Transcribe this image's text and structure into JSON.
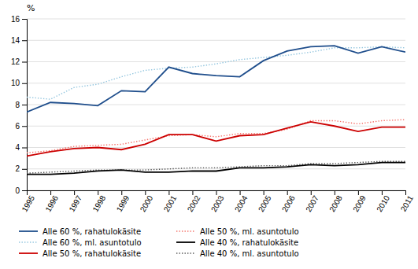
{
  "chart_data": {
    "type": "line",
    "ylabel": "%",
    "x": [
      1995,
      1996,
      1997,
      1998,
      1999,
      2000,
      2001,
      2002,
      2003,
      2004,
      2005,
      2006,
      2007,
      2008,
      2009,
      2010,
      2011
    ],
    "series": [
      {
        "name": "Alle 60 %, rahatulokäsite",
        "color": "#1f4e8c",
        "line_style": "solid",
        "values": [
          7.3,
          8.2,
          8.1,
          7.9,
          9.3,
          9.2,
          11.5,
          10.9,
          10.7,
          10.6,
          12.1,
          13.0,
          13.4,
          13.5,
          12.8,
          13.4,
          12.9
        ]
      },
      {
        "name": "Alle 60 %, ml. asuntotulo",
        "color": "#92c5de",
        "line_style": "dotted",
        "values": [
          8.7,
          8.5,
          9.6,
          9.9,
          10.6,
          11.2,
          11.4,
          11.5,
          11.8,
          12.2,
          12.4,
          12.6,
          12.9,
          13.3,
          13.3,
          13.4,
          13.3
        ]
      },
      {
        "name": "Alle 50 %, rahatulokäsite",
        "color": "#cc0000",
        "line_style": "solid",
        "values": [
          3.2,
          3.6,
          3.9,
          4.0,
          3.8,
          4.3,
          5.2,
          5.2,
          4.6,
          5.1,
          5.2,
          5.8,
          6.4,
          6.0,
          5.5,
          5.9,
          5.9
        ]
      },
      {
        "name": "Alle 50 %, ml. asuntotulo",
        "color": "#f4726a",
        "line_style": "dotted",
        "values": [
          3.5,
          3.7,
          4.1,
          4.2,
          4.3,
          4.7,
          5.1,
          5.2,
          5.0,
          5.3,
          5.3,
          5.7,
          6.5,
          6.5,
          6.2,
          6.5,
          6.6
        ]
      },
      {
        "name": "Alle 40 %, rahatulokäsite",
        "color": "#000000",
        "line_style": "solid",
        "values": [
          1.5,
          1.5,
          1.6,
          1.8,
          1.9,
          1.7,
          1.7,
          1.8,
          1.8,
          2.1,
          2.1,
          2.2,
          2.4,
          2.3,
          2.4,
          2.6,
          2.6
        ]
      },
      {
        "name": "Alle 40 %, ml. asuntotulo",
        "color": "#555555",
        "line_style": "dotted",
        "values": [
          1.6,
          1.7,
          1.8,
          1.9,
          1.9,
          1.9,
          2.0,
          2.1,
          2.1,
          2.2,
          2.3,
          2.3,
          2.5,
          2.5,
          2.6,
          2.7,
          2.7
        ]
      }
    ],
    "xlim": [
      1995,
      2011
    ],
    "xticks": [
      1995,
      1996,
      1997,
      1998,
      1999,
      2000,
      2001,
      2002,
      2003,
      2004,
      2005,
      2006,
      2007,
      2008,
      2009,
      2010,
      2011
    ],
    "ylim": [
      0,
      16
    ],
    "yticks": [
      0,
      2,
      4,
      6,
      8,
      10,
      12,
      14,
      16
    ],
    "grid": true,
    "legend": "bottom"
  }
}
